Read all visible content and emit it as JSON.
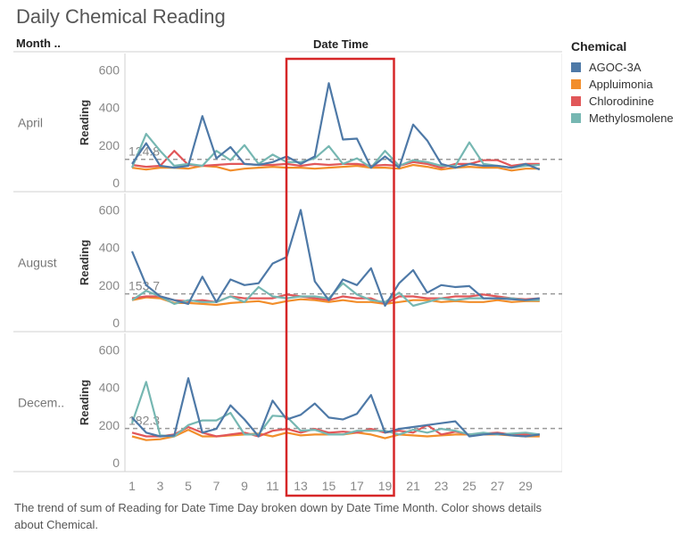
{
  "title": "Daily Chemical Reading",
  "row_header": "Month ..",
  "column_header": "Date Time",
  "legend": {
    "title": "Chemical",
    "items": [
      {
        "label": "AGOC-3A",
        "color": "#4e79a7"
      },
      {
        "label": "Appluimonia",
        "color": "#f28e2b"
      },
      {
        "label": "Chlorodinine",
        "color": "#e15759"
      },
      {
        "label": "Methylosmolene",
        "color": "#76b7b2"
      }
    ]
  },
  "caption": "The trend of sum of Reading for Date Time Day broken down by Date Time Month.  Color shows details about Chemical.",
  "highlight_color": "#d62728",
  "chart_data": {
    "type": "line",
    "x_axis": {
      "label": "",
      "min": 1,
      "max": 31,
      "ticks": [
        1,
        3,
        5,
        7,
        9,
        11,
        13,
        15,
        17,
        19,
        21,
        23,
        25,
        27,
        29
      ]
    },
    "highlight_days": [
      13,
      19
    ],
    "panels": [
      {
        "month": "April",
        "ylabel": "Reading",
        "ylim": [
          0,
          650
        ],
        "yticks": [
          0,
          200,
          400,
          600
        ],
        "reference_value": 124.8,
        "reference_label": "124.8",
        "series": [
          {
            "name": "AGOC-3A",
            "values": [
              100,
              210,
              90,
              80,
              90,
              355,
              130,
              190,
              100,
              95,
              110,
              140,
              100,
              140,
              530,
              230,
              235,
              80,
              140,
              80,
              310,
              225,
              100,
              80,
              100,
              90,
              90,
              80,
              100,
              70
            ]
          },
          {
            "name": "Appluimonia",
            "values": [
              80,
              70,
              80,
              80,
              75,
              90,
              85,
              65,
              75,
              80,
              85,
              80,
              80,
              75,
              80,
              85,
              90,
              80,
              80,
              75,
              95,
              85,
              70,
              80,
              85,
              80,
              80,
              65,
              75,
              75
            ]
          },
          {
            "name": "Chlorodinine",
            "values": [
              95,
              85,
              90,
              170,
              95,
              90,
              95,
              100,
              100,
              95,
              95,
              100,
              90,
              100,
              95,
              100,
              100,
              90,
              95,
              90,
              110,
              100,
              80,
              100,
              100,
              120,
              120,
              90,
              100,
              100
            ]
          },
          {
            "name": "Methylosmolene",
            "values": [
              80,
              260,
              170,
              90,
              100,
              90,
              170,
              120,
              200,
              100,
              150,
              110,
              110,
              130,
              195,
              100,
              130,
              80,
              170,
              90,
              120,
              110,
              90,
              90,
              215,
              100,
              90,
              80,
              90,
              95
            ]
          }
        ]
      },
      {
        "month": "August",
        "ylabel": "Reading",
        "ylim": [
          0,
          650
        ],
        "yticks": [
          0,
          200,
          400,
          600
        ],
        "reference_value": 153.7,
        "reference_label": "153.7",
        "series": [
          {
            "name": "AGOC-3A",
            "values": [
              380,
              200,
              140,
              120,
              100,
              245,
              110,
              230,
              200,
              210,
              315,
              350,
              600,
              220,
              120,
              230,
              200,
              290,
              90,
              210,
              280,
              160,
              200,
              190,
              195,
              130,
              130,
              125,
              120,
              130
            ]
          },
          {
            "name": "Appluimonia",
            "values": [
              120,
              135,
              130,
              105,
              105,
              100,
              95,
              105,
              110,
              115,
              100,
              115,
              125,
              120,
              110,
              120,
              110,
              110,
              100,
              110,
              120,
              120,
              110,
              115,
              110,
              110,
              120,
              110,
              115,
              115
            ]
          },
          {
            "name": "Chlorodinine",
            "values": [
              130,
              140,
              140,
              120,
              115,
              120,
              110,
              140,
              130,
              130,
              130,
              150,
              140,
              130,
              120,
              140,
              130,
              130,
              100,
              140,
              140,
              130,
              130,
              140,
              140,
              150,
              140,
              130,
              125,
              130
            ]
          },
          {
            "name": "Methylosmolene",
            "values": [
              120,
              170,
              140,
              100,
              120,
              110,
              110,
              140,
              110,
              190,
              140,
              130,
              140,
              140,
              130,
              210,
              150,
              120,
              110,
              160,
              90,
              110,
              130,
              120,
              130,
              130,
              130,
              130,
              120,
              120
            ]
          }
        ]
      },
      {
        "month": "Decem..",
        "ylabel": "Reading",
        "ylim": [
          0,
          650
        ],
        "yticks": [
          0,
          200,
          400,
          600
        ],
        "reference_value": 182.3,
        "reference_label": "182.3",
        "series": [
          {
            "name": "AGOC-3A",
            "values": [
              240,
              160,
              140,
              145,
              450,
              160,
              180,
              305,
              230,
              140,
              330,
              230,
              255,
              315,
              240,
              230,
              260,
              360,
              160,
              180,
              190,
              200,
              210,
              220,
              140,
              150,
              155,
              145,
              140,
              150
            ]
          },
          {
            "name": "Appluimonia",
            "values": [
              140,
              120,
              125,
              140,
              175,
              140,
              140,
              145,
              150,
              155,
              140,
              160,
              145,
              150,
              150,
              150,
              160,
              150,
              130,
              150,
              145,
              140,
              145,
              150,
              150,
              150,
              150,
              145,
              140,
              140
            ]
          },
          {
            "name": "Chlorodinine",
            "values": [
              160,
              140,
              140,
              150,
              190,
              160,
              140,
              150,
              160,
              140,
              170,
              180,
              160,
              180,
              160,
              165,
              160,
              180,
              160,
              170,
              160,
              200,
              150,
              165,
              150,
              155,
              160,
              150,
              150,
              150
            ]
          },
          {
            "name": "Methylosmolene",
            "values": [
              210,
              430,
              145,
              140,
              200,
              225,
              225,
              265,
              150,
              150,
              250,
              245,
              170,
              175,
              150,
              150,
              170,
              170,
              170,
              150,
              175,
              160,
              180,
              170,
              150,
              160,
              150,
              155,
              160,
              150
            ]
          }
        ]
      }
    ]
  }
}
